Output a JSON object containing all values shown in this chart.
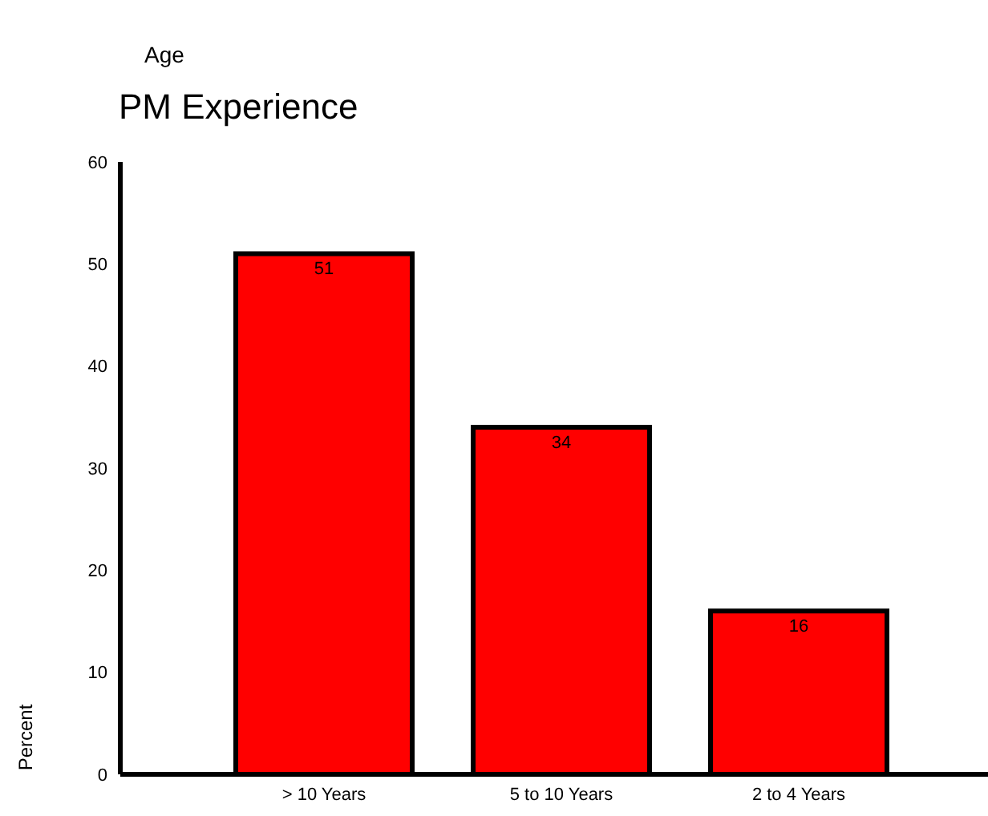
{
  "chart_data": {
    "type": "bar",
    "title": "PM Experience",
    "annotations": [
      "Age"
    ],
    "ylabel": "Percent",
    "categories": [
      "> 10 Years",
      "5 to 10 Years",
      "2 to 4 Years"
    ],
    "values": [
      51,
      34,
      16
    ],
    "color": "#ff0000",
    "data_labels": true,
    "ylim": [
      0,
      60
    ],
    "yticks": [
      0,
      10,
      20,
      30,
      40,
      50,
      60
    ],
    "grid": false,
    "legend": false
  }
}
